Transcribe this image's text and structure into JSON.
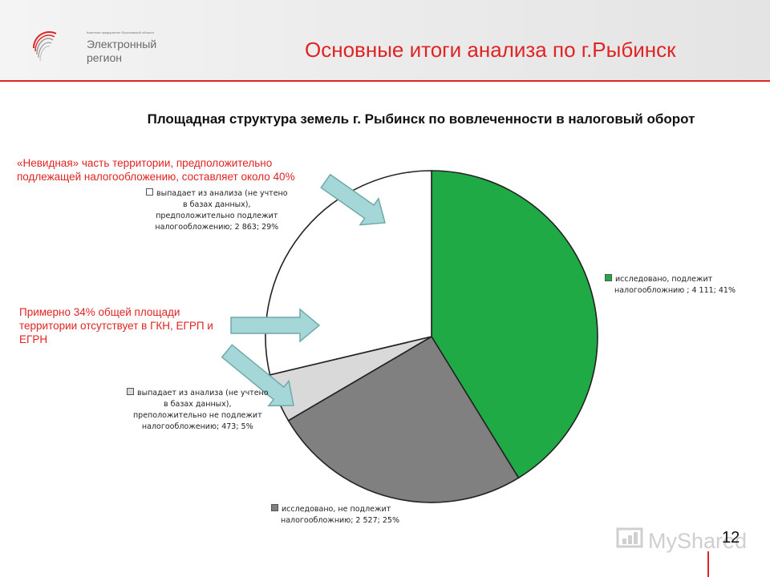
{
  "header": {
    "title": "Основные итоги анализа по г.Рыбинск",
    "logo_small_text": "Казенное предприятие Ярославской области",
    "logo_line1": "Электронный",
    "logo_line2": "регион"
  },
  "chart_data": {
    "type": "pie",
    "title": "Площадная структура земель г. Рыбинск по вовлеченности в налоговый оборот",
    "slices": [
      {
        "label": "исследовано, подлежит налогообложнию",
        "value": 4111,
        "percent": 41,
        "color": "#1faa46"
      },
      {
        "label": "исследовано, не подлежит налогообложнию",
        "value": 2527,
        "percent": 25,
        "color": "#808080"
      },
      {
        "label": "выпадает из анализа (не учтено в базах данных), преположительно не подлежит налогообложению",
        "value": 473,
        "percent": 5,
        "color": "#d9d9d9"
      },
      {
        "label": "выпадает из анализа (не учтено в базах данных), предположительно подлежит налогообложению",
        "value": 2863,
        "percent": 29,
        "color": "#ffffff"
      }
    ],
    "labels": [
      {
        "lines": [
          "исследовано, подлежит",
          "налогообложнию ; 4 111; 41%"
        ]
      },
      {
        "lines": [
          "исследовано, не подлежит",
          "налогообложнию; 2 527; 25%"
        ]
      },
      {
        "lines": [
          "выпадает из анализа (не учтено",
          "в базах данных),",
          "преположительно не подлежит",
          "налогообложению; 473; 5%"
        ]
      },
      {
        "lines": [
          "выпадает из анализа (не учтено",
          "в базах данных),",
          "предположительно подлежит",
          "налогообложению; 2 863; 29%"
        ]
      }
    ]
  },
  "annotations": {
    "invisible_share": "«Невидная» часть территории, предположительно подлежащей налогообложению, составляет около 40%",
    "missing_share": "Примерно 34% общей площади территории отсутствует в ГКН, ЕГРП и ЕГРН"
  },
  "footer": {
    "page_number": "12",
    "watermark": "MyShared"
  },
  "colors": {
    "accent": "#e02424",
    "arrow_fill": "#a6d7d8",
    "arrow_stroke": "#6fa9ab"
  }
}
